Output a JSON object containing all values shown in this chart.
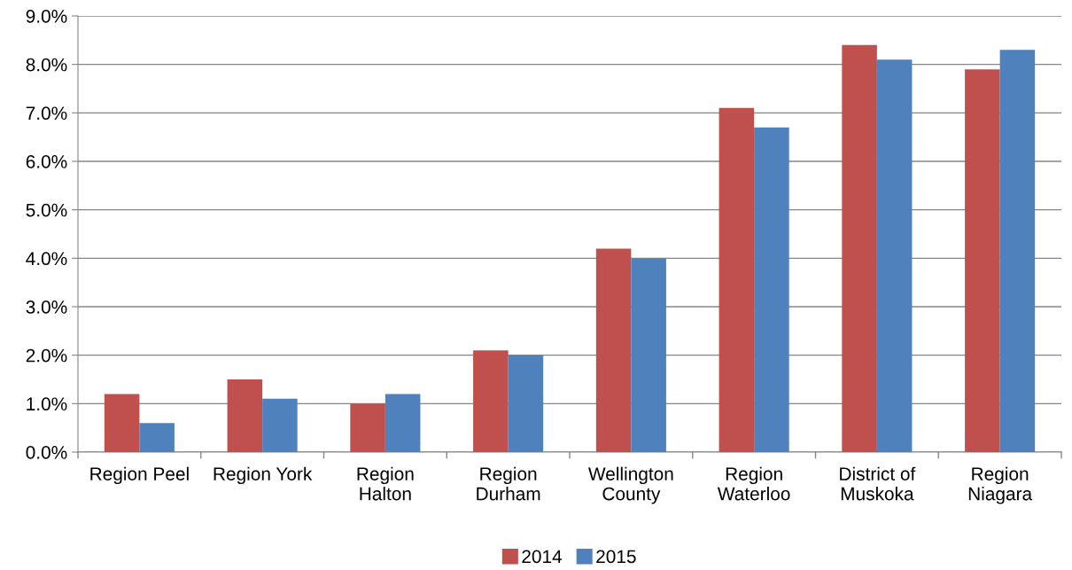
{
  "chart_data": {
    "type": "bar",
    "categories": [
      "Region Peel",
      "Region York",
      "Region\nHalton",
      "Region\nDurham",
      "Wellington\nCounty",
      "Region\nWaterloo",
      "District of\nMuskoka",
      "Region\nNiagara"
    ],
    "series": [
      {
        "name": "2014",
        "color": "#c0504d",
        "values": [
          1.2,
          1.5,
          1.0,
          2.1,
          4.2,
          7.1,
          8.4,
          7.9
        ]
      },
      {
        "name": "2015",
        "color": "#4f81bd",
        "values": [
          0.6,
          1.1,
          1.2,
          2.0,
          4.0,
          6.7,
          8.1,
          8.3
        ]
      }
    ],
    "ylim": [
      0,
      9
    ],
    "yticks": [
      {
        "value": 0,
        "label": "0.0%"
      },
      {
        "value": 1,
        "label": "1.0%"
      },
      {
        "value": 2,
        "label": "2.0%"
      },
      {
        "value": 3,
        "label": "3.0%"
      },
      {
        "value": 4,
        "label": "4.0%"
      },
      {
        "value": 5,
        "label": "5.0%"
      },
      {
        "value": 6,
        "label": "6.0%"
      },
      {
        "value": 7,
        "label": "7.0%"
      },
      {
        "value": 8,
        "label": "8.0%"
      },
      {
        "value": 9,
        "label": "9.0%"
      }
    ],
    "grid": "y",
    "legend": "bottom"
  }
}
